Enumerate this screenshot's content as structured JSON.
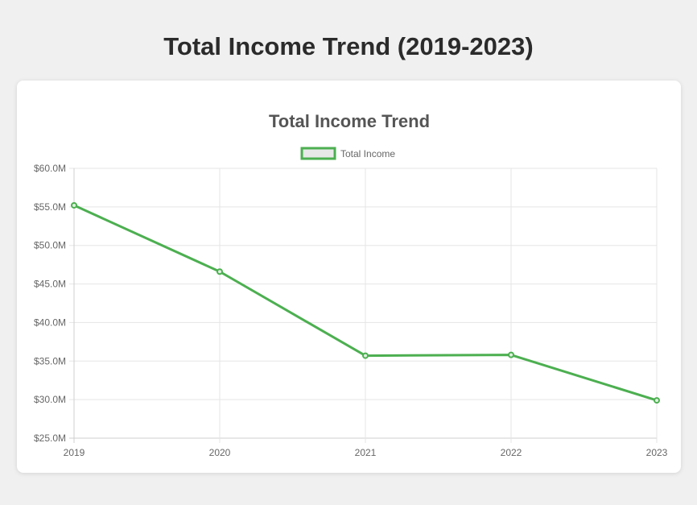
{
  "page": {
    "title": "Total Income Trend (2019-2023)"
  },
  "chart_data": {
    "type": "line",
    "title": "Total Income Trend",
    "xlabel": "",
    "ylabel": "",
    "categories": [
      "2019",
      "2020",
      "2021",
      "2022",
      "2023"
    ],
    "series": [
      {
        "name": "Total Income",
        "values": [
          55.2,
          46.6,
          35.7,
          35.8,
          29.9
        ],
        "color": "#4caf50",
        "fill_color": "#e8e8e8"
      }
    ],
    "y_ticks": [
      "$60.0M",
      "$55.0M",
      "$50.0M",
      "$45.0M",
      "$40.0M",
      "$35.0M",
      "$30.0M",
      "$25.0M"
    ],
    "ylim": [
      25,
      60
    ],
    "y_unit": "$M",
    "grid": true,
    "legend": "top-center",
    "colors": {
      "grid": "#e5e5e5",
      "axis": "#cfcfcf"
    }
  }
}
